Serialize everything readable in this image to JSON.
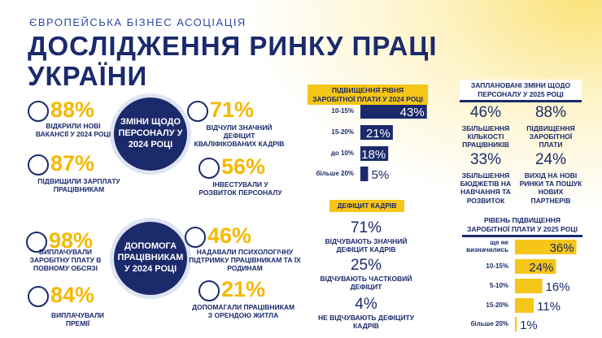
{
  "header": {
    "org": "ЄВРОПЕЙСЬКА БІЗНЕС АСОЦІАЦІЯ",
    "title": [
      "ДОСЛІДЖЕННЯ РИНКУ ПРАЦІ",
      "УКРАЇНИ"
    ]
  },
  "personnel_2024": {
    "title": "ЗМІНИ ЩОДО ПЕРСОНАЛУ У 2024 РОЦІ",
    "stats": [
      {
        "value": "88%",
        "label": "ВІДКРИЛИ НОВІ ВАКАНСІЇ У 2024 РОЦІ"
      },
      {
        "value": "87%",
        "label": "ПІДВИЩИЛИ ЗАРПЛАТУ ПРАЦІВНИКАМ"
      },
      {
        "value": "71%",
        "label": "ВІДЧУЛИ ЗНАЧНИЙ ДЕФІЦИТ КВАЛІФІКОВАНИХ КАДРІВ"
      },
      {
        "value": "56%",
        "label": "ІНВЕСТУВАЛИ У РОЗВИТОК ПЕРСОНАЛУ"
      }
    ]
  },
  "assistance_2024": {
    "title": "ДОПОМОГА ПРАЦІВНИКАМ У 2024 РОЦІ",
    "stats": [
      {
        "value": "98%",
        "label": "ВИПЛАЧУВАЛИ ЗАРОБІТНУ ПЛАТУ В ПОВНОМУ ОБСЯЗІ"
      },
      {
        "value": "84%",
        "label": "ВИПЛАЧУВАЛИ ПРЕМІЇ"
      },
      {
        "value": "46%",
        "label": "НАДАВАЛИ ПСИХОЛОГІЧНУ ПІДТРИМКУ ПРАЦІВНИКАМ ТА ЇХ РОДИНАМ"
      },
      {
        "value": "21%",
        "label": "ДОПОМАГАЛИ ПРАЦІВНИКАМ З ОРЕНДОЮ ЖИТЛА"
      }
    ]
  },
  "salary_increase_2024": {
    "title": "ПІДВИЩЕННЯ РІВНЯ ЗАРОБІТНОЇ ПЛАТИ У 2024 РОЦІ",
    "categories": [
      "10-15%",
      "15-20%",
      "до 10%",
      "більше 20%"
    ],
    "values": [
      43,
      21,
      18,
      5
    ],
    "value_labels": [
      "43%",
      "21%",
      "18%",
      "5%"
    ],
    "color": "#1b2a6b"
  },
  "shortage": {
    "title": "ДЕФІЦИТ КАДРІВ",
    "stats": [
      {
        "value": "71%",
        "label": "ВІДЧУВАЮТЬ ЗНАЧНИЙ ДЕФІЦИТ КАДРІВ"
      },
      {
        "value": "25%",
        "label": "ВІДЧУВАЮТЬ ЧАСТКОВИЙ ДЕФІЦИТ"
      },
      {
        "value": "4%",
        "label": "НЕ ВІДЧУВАЮТЬ ДЕФІЦИТУ КАДРІВ"
      }
    ]
  },
  "planned_2025": {
    "title": "ЗАПЛАНОВАНІ ЗМІНИ ЩОДО ПЕРСОНАЛУ У 2025 РОЦІ",
    "stats": [
      {
        "value": "46%",
        "label": "ЗБІЛЬШЕННЯ КІЛЬКОСТІ ПРАЦІВНИКІВ"
      },
      {
        "value": "88%",
        "label": "ПІДВИЩЕННЯ ЗАРОБІТНОЇ ПЛАТИ"
      },
      {
        "value": "33%",
        "label": "ЗБІЛЬШЕННЯ БЮДЖЕТІВ НА НАВЧАННЯ ТА РОЗВИТОК"
      },
      {
        "value": "24%",
        "label": "ВИХІД НА НОВІ РИНКИ ТА ПОШУК НОВИХ ПАРТНЕРІВ"
      }
    ]
  },
  "raise_2025": {
    "title": "РІВЕНЬ ПІДВИЩЕННЯ ЗАРОБІТНОЇ ПЛАТИ У 2025 РОЦІ",
    "categories": [
      "ще не визначились",
      "10-15%",
      "5-10%",
      "15-20%",
      "більше 20%"
    ],
    "values": [
      36,
      24,
      16,
      11,
      1
    ],
    "value_labels": [
      "36%",
      "24%",
      "16%",
      "11%",
      "1%"
    ],
    "color": "#f5c518"
  }
}
